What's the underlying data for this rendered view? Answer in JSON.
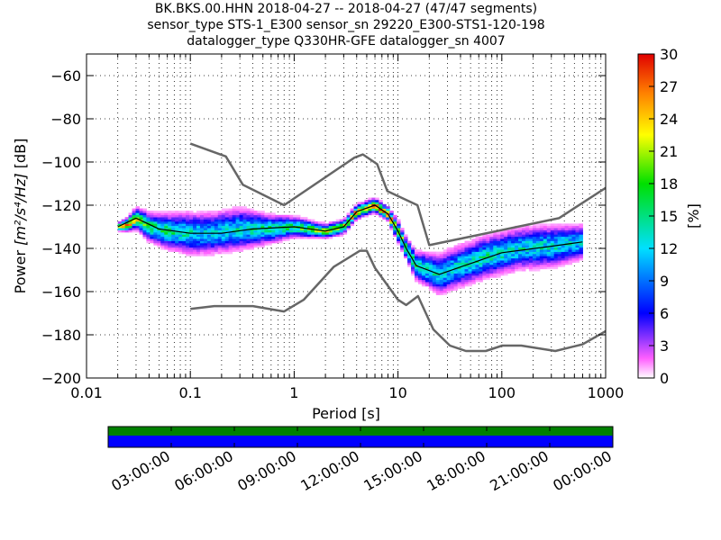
{
  "title": {
    "line1": "BK.BKS.00.HHN   2018-04-27 -- 2018-04-27  (47/47 segments)",
    "line2": "sensor_type STS-1_E300 sensor_sn 29220_E300-STS1-120-198",
    "line3": "datalogger_type Q330HR-GFE datalogger_sn 4007"
  },
  "chart_data": {
    "type": "heatmap",
    "xlabel": "Period [s]",
    "ylabel_parts": {
      "prefix": "Power ",
      "unit": "[m²/s⁴/Hz]",
      "suffix": " [dB]"
    },
    "x_scale": "log",
    "xlim": [
      0.01,
      1000
    ],
    "ylim": [
      -200,
      -50
    ],
    "x_ticks": [
      {
        "value": 0.01,
        "label": "0.01"
      },
      {
        "value": 0.1,
        "label": "0.1"
      },
      {
        "value": 1,
        "label": "1"
      },
      {
        "value": 10,
        "label": "10"
      },
      {
        "value": 100,
        "label": "100"
      },
      {
        "value": 1000,
        "label": "1000"
      }
    ],
    "y_ticks": [
      {
        "value": -60,
        "label": "−60"
      },
      {
        "value": -80,
        "label": "−80"
      },
      {
        "value": -100,
        "label": "−100"
      },
      {
        "value": -120,
        "label": "−120"
      },
      {
        "value": -140,
        "label": "−140"
      },
      {
        "value": -160,
        "label": "−160"
      },
      {
        "value": -180,
        "label": "−180"
      },
      {
        "value": -200,
        "label": "−200"
      }
    ],
    "grid": true,
    "colorbar": {
      "label": "[%]",
      "min": 0,
      "max": 30,
      "ticks": [
        {
          "value": 0,
          "label": "0"
        },
        {
          "value": 3,
          "label": "3"
        },
        {
          "value": 6,
          "label": "6"
        },
        {
          "value": 9,
          "label": "9"
        },
        {
          "value": 12,
          "label": "12"
        },
        {
          "value": 15,
          "label": "15"
        },
        {
          "value": 18,
          "label": "18"
        },
        {
          "value": 21,
          "label": "21"
        },
        {
          "value": 24,
          "label": "24"
        },
        {
          "value": 27,
          "label": "27"
        },
        {
          "value": 30,
          "label": "30"
        }
      ]
    },
    "psd_band": [
      {
        "period": 0.02,
        "center": -130,
        "spread": 1,
        "pct": 28
      },
      {
        "period": 0.025,
        "center": -129,
        "spread": 2,
        "pct": 26
      },
      {
        "period": 0.03,
        "center": -126,
        "spread": 3,
        "pct": 22
      },
      {
        "period": 0.04,
        "center": -130,
        "spread": 4,
        "pct": 17
      },
      {
        "period": 0.06,
        "center": -132,
        "spread": 5,
        "pct": 15
      },
      {
        "period": 0.1,
        "center": -133,
        "spread": 6,
        "pct": 13
      },
      {
        "period": 0.15,
        "center": -133,
        "spread": 6,
        "pct": 12
      },
      {
        "period": 0.3,
        "center": -131,
        "spread": 6,
        "pct": 13
      },
      {
        "period": 0.6,
        "center": -131,
        "spread": 4,
        "pct": 15
      },
      {
        "period": 1,
        "center": -130,
        "spread": 3,
        "pct": 16
      },
      {
        "period": 2,
        "center": -132,
        "spread": 2,
        "pct": 20
      },
      {
        "period": 3,
        "center": -130,
        "spread": 2,
        "pct": 22
      },
      {
        "period": 4,
        "center": -123,
        "spread": 2,
        "pct": 24
      },
      {
        "period": 6,
        "center": -120,
        "spread": 2,
        "pct": 26
      },
      {
        "period": 8,
        "center": -124,
        "spread": 2,
        "pct": 25
      },
      {
        "period": 10,
        "center": -132,
        "spread": 3,
        "pct": 20
      },
      {
        "period": 12,
        "center": -140,
        "spread": 3,
        "pct": 18
      },
      {
        "period": 15,
        "center": -148,
        "spread": 4,
        "pct": 16
      },
      {
        "period": 20,
        "center": -150,
        "spread": 5,
        "pct": 14
      },
      {
        "period": 25,
        "center": -152,
        "spread": 6,
        "pct": 12
      },
      {
        "period": 40,
        "center": -148,
        "spread": 6,
        "pct": 13
      },
      {
        "period": 70,
        "center": -144,
        "spread": 6,
        "pct": 14
      },
      {
        "period": 150,
        "center": -140,
        "spread": 6,
        "pct": 13
      },
      {
        "period": 300,
        "center": -139,
        "spread": 6,
        "pct": 13
      },
      {
        "period": 600,
        "center": -137,
        "spread": 5,
        "pct": 12
      }
    ],
    "series": [
      {
        "name": "NHNM",
        "color": "#666666",
        "points": [
          [
            0.1,
            -91.5
          ],
          [
            0.22,
            -97.4
          ],
          [
            0.32,
            -110.5
          ],
          [
            0.8,
            -120
          ],
          [
            3.8,
            -98
          ],
          [
            4.6,
            -96.5
          ],
          [
            6.3,
            -101
          ],
          [
            7.9,
            -113.5
          ],
          [
            15.4,
            -120
          ],
          [
            20,
            -138.5
          ],
          [
            354.8,
            -126
          ],
          [
            1000,
            -112
          ]
        ]
      },
      {
        "name": "NLNM",
        "color": "#666666",
        "points": [
          [
            0.1,
            -168
          ],
          [
            0.17,
            -166.7
          ],
          [
            0.4,
            -166.7
          ],
          [
            0.8,
            -169.2
          ],
          [
            1.24,
            -163.7
          ],
          [
            2.4,
            -148.6
          ],
          [
            4.3,
            -141.1
          ],
          [
            5,
            -141.1
          ],
          [
            6,
            -149
          ],
          [
            10,
            -163.8
          ],
          [
            12,
            -166.2
          ],
          [
            15.6,
            -162.1
          ],
          [
            21.9,
            -177.5
          ],
          [
            31.6,
            -185
          ],
          [
            45,
            -187.5
          ],
          [
            70,
            -187.5
          ],
          [
            101,
            -185
          ],
          [
            154,
            -185
          ],
          [
            328,
            -187.5
          ],
          [
            600,
            -184.4
          ],
          [
            1000,
            -178.3
          ]
        ]
      },
      {
        "name": "mean",
        "color": "#000000",
        "points": [
          [
            0.02,
            -130
          ],
          [
            0.03,
            -126
          ],
          [
            0.05,
            -131
          ],
          [
            0.1,
            -133
          ],
          [
            0.2,
            -133
          ],
          [
            0.4,
            -131
          ],
          [
            1,
            -130
          ],
          [
            2,
            -132
          ],
          [
            3,
            -130
          ],
          [
            4,
            -123
          ],
          [
            6,
            -120
          ],
          [
            8,
            -124
          ],
          [
            10,
            -132
          ],
          [
            12,
            -140
          ],
          [
            15,
            -148
          ],
          [
            25,
            -152
          ],
          [
            50,
            -147
          ],
          [
            100,
            -142
          ],
          [
            300,
            -139
          ],
          [
            600,
            -137
          ]
        ]
      }
    ],
    "timeline": {
      "ticks": [
        "03:00:00",
        "06:00:00",
        "09:00:00",
        "12:00:00",
        "15:00:00",
        "18:00:00",
        "21:00:00",
        "00:00:00"
      ],
      "data_color": "#0000ff",
      "coverage_color": "#008000"
    }
  }
}
